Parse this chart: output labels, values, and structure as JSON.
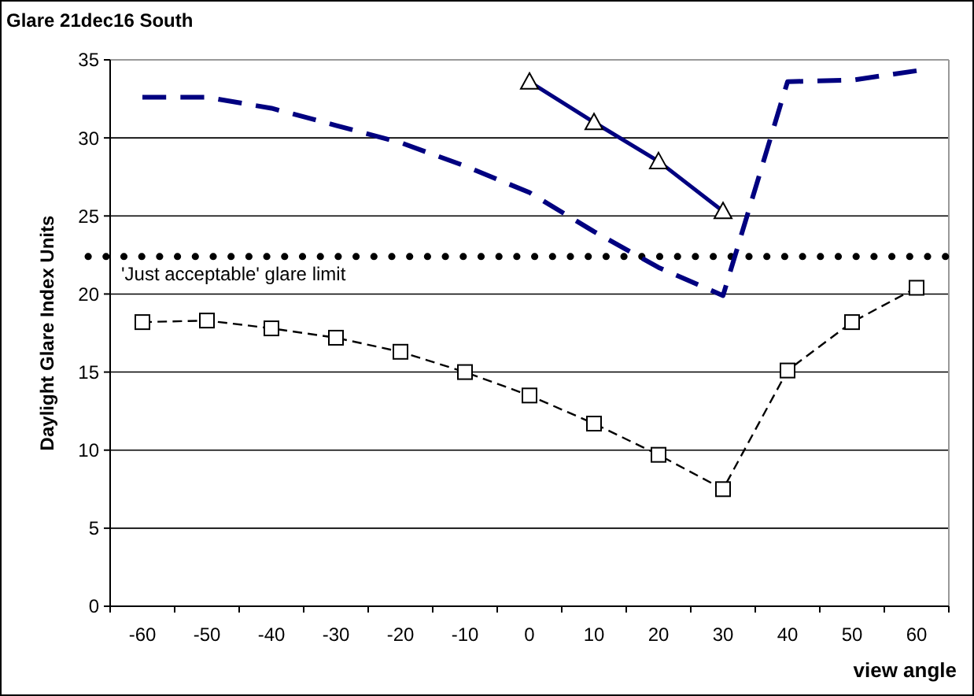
{
  "chart_data": {
    "type": "line",
    "title": "Glare 21dec16 South",
    "xlabel": "view angle",
    "ylabel": "Daylight Glare Index Units",
    "categories": [
      "-60",
      "-50",
      "-40",
      "-30",
      "-20",
      "-10",
      "0",
      "10",
      "20",
      "30",
      "40",
      "50",
      "60"
    ],
    "ylim": [
      0,
      35
    ],
    "yticks": [
      0,
      5,
      10,
      15,
      20,
      25,
      30,
      35
    ],
    "grid": "y",
    "series": [
      {
        "color": "#000000",
        "marker": "square",
        "line_style": "dashed",
        "values": [
          18.2,
          18.3,
          17.8,
          17.2,
          16.3,
          15.0,
          13.5,
          11.7,
          9.7,
          7.5,
          15.1,
          18.2,
          20.4
        ]
      },
      {
        "color": "#000080",
        "marker": "triangle",
        "line_style": "solid",
        "values": [
          null,
          null,
          null,
          null,
          null,
          null,
          33.6,
          31.0,
          28.5,
          25.3,
          null,
          null,
          null
        ]
      },
      {
        "color": "#000080",
        "marker": "none",
        "line_style": "dashed",
        "values": [
          32.6,
          32.6,
          31.9,
          30.8,
          29.7,
          28.2,
          26.5,
          24.0,
          21.7,
          19.9,
          33.6,
          33.7,
          34.3
        ]
      }
    ],
    "ref_lines": [
      {
        "axis": "y",
        "value": 22.4,
        "label": "'Just acceptable' glare limit",
        "color": "#000000",
        "line_style": "dotted"
      }
    ]
  }
}
